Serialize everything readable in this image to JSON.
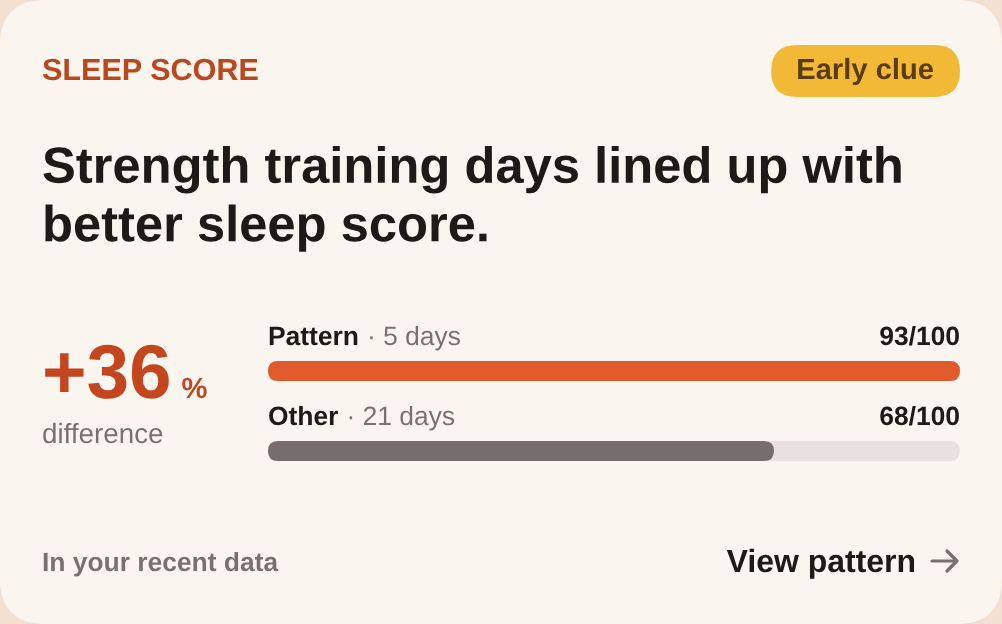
{
  "chart_data": {
    "type": "bar",
    "orientation": "horizontal",
    "title": "SLEEP SCORE",
    "subtitle": "Strength training days lined up with better sleep score.",
    "categories": [
      "Pattern",
      "Other"
    ],
    "values": [
      93,
      68
    ],
    "colors": [
      "#e05a2c",
      "#776d6a"
    ],
    "value_labels": [
      "93/100",
      "68/100"
    ],
    "xlim": [
      0,
      93
    ],
    "tick_labels": "y",
    "annotations": [
      "Early clue",
      "+36",
      "%",
      "difference",
      "· 5 days",
      "· 21 days",
      "In your recent data",
      "View pattern"
    ]
  }
}
